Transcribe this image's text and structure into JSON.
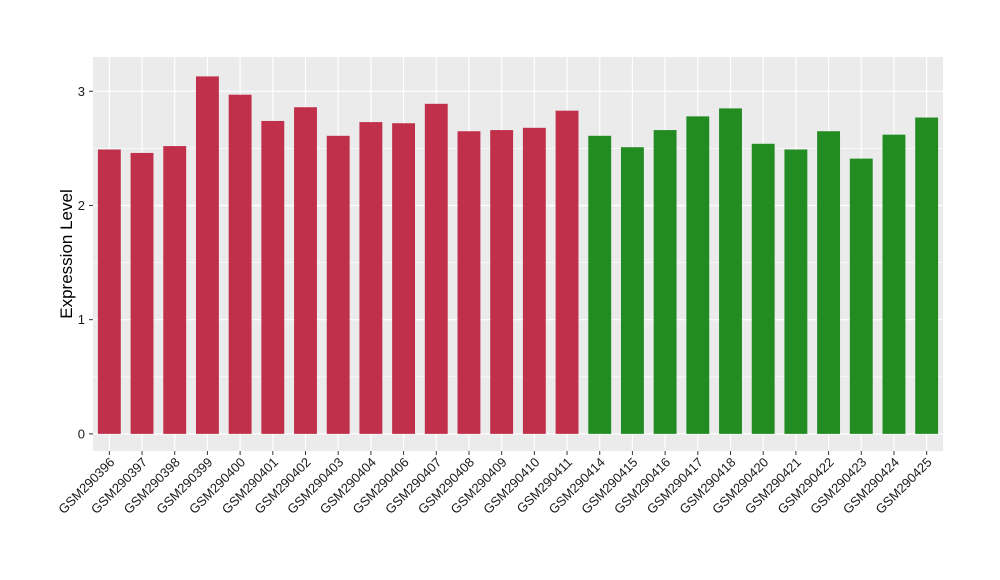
{
  "chart_data": {
    "type": "bar",
    "title": "",
    "xlabel": "",
    "ylabel": "Expression Level",
    "ylim": [
      -0.15,
      3.3
    ],
    "yticks": [
      0,
      1,
      2,
      3
    ],
    "grid": true,
    "legend": "none",
    "categories": [
      "GSM290396",
      "GSM290397",
      "GSM290398",
      "GSM290399",
      "GSM290400",
      "GSM290401",
      "GSM290402",
      "GSM290403",
      "GSM290404",
      "GSM290406",
      "GSM290407",
      "GSM290408",
      "GSM290409",
      "GSM290410",
      "GSM290411",
      "GSM290414",
      "GSM290415",
      "GSM290416",
      "GSM290417",
      "GSM290418",
      "GSM290420",
      "GSM290421",
      "GSM290422",
      "GSM290423",
      "GSM290424",
      "GSM290425"
    ],
    "values": [
      2.49,
      2.46,
      2.52,
      3.13,
      2.97,
      2.74,
      2.86,
      2.61,
      2.73,
      2.72,
      2.89,
      2.65,
      2.66,
      2.68,
      2.83,
      2.61,
      2.51,
      2.66,
      2.78,
      2.85,
      2.54,
      2.49,
      2.65,
      2.41,
      2.62,
      2.77
    ],
    "groups": [
      "a",
      "a",
      "a",
      "a",
      "a",
      "a",
      "a",
      "a",
      "a",
      "a",
      "a",
      "a",
      "a",
      "a",
      "a",
      "b",
      "b",
      "b",
      "b",
      "b",
      "b",
      "b",
      "b",
      "b",
      "b",
      "b"
    ],
    "colors": {
      "a": "#C0304B",
      "b": "#228B22",
      "panel": "#EBEBEB",
      "grid": "#FFFFFF"
    }
  }
}
